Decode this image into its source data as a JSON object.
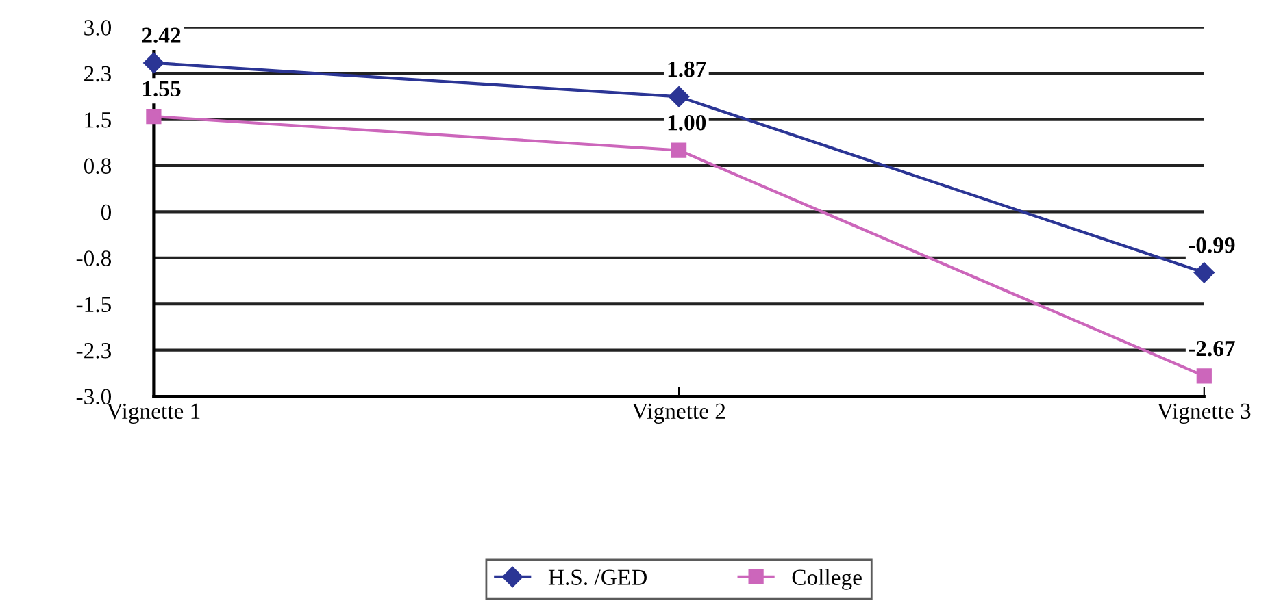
{
  "chart_data": {
    "type": "line",
    "categories": [
      "Vignette 1",
      "Vignette 2",
      "Vignette 3"
    ],
    "series": [
      {
        "name": "H.S. /GED",
        "color": "#2b3595",
        "marker": "diamond",
        "values": [
          2.42,
          1.87,
          -0.99
        ],
        "value_labels": [
          "2.42",
          "1.87",
          "-0.99"
        ]
      },
      {
        "name": "College",
        "color": "#cc66bb",
        "marker": "square",
        "values": [
          1.55,
          1.0,
          -2.67
        ],
        "value_labels": [
          "1.55",
          "1.00",
          "-2.67"
        ]
      }
    ],
    "ylim": [
      -3.0,
      3.0
    ],
    "yticks": [
      {
        "value": 3.0,
        "label": "3.0"
      },
      {
        "value": 2.25,
        "label": "2.3"
      },
      {
        "value": 1.5,
        "label": "1.5"
      },
      {
        "value": 0.75,
        "label": "0.8"
      },
      0,
      {
        "value": -0.75,
        "label": "-0.8"
      },
      {
        "value": -1.5,
        "label": "-1.5"
      },
      {
        "value": -2.25,
        "label": "-2.3"
      },
      {
        "value": -3.0,
        "label": "-3.0"
      }
    ],
    "grid": "y",
    "legend": "bottom",
    "line_style": "solid"
  }
}
